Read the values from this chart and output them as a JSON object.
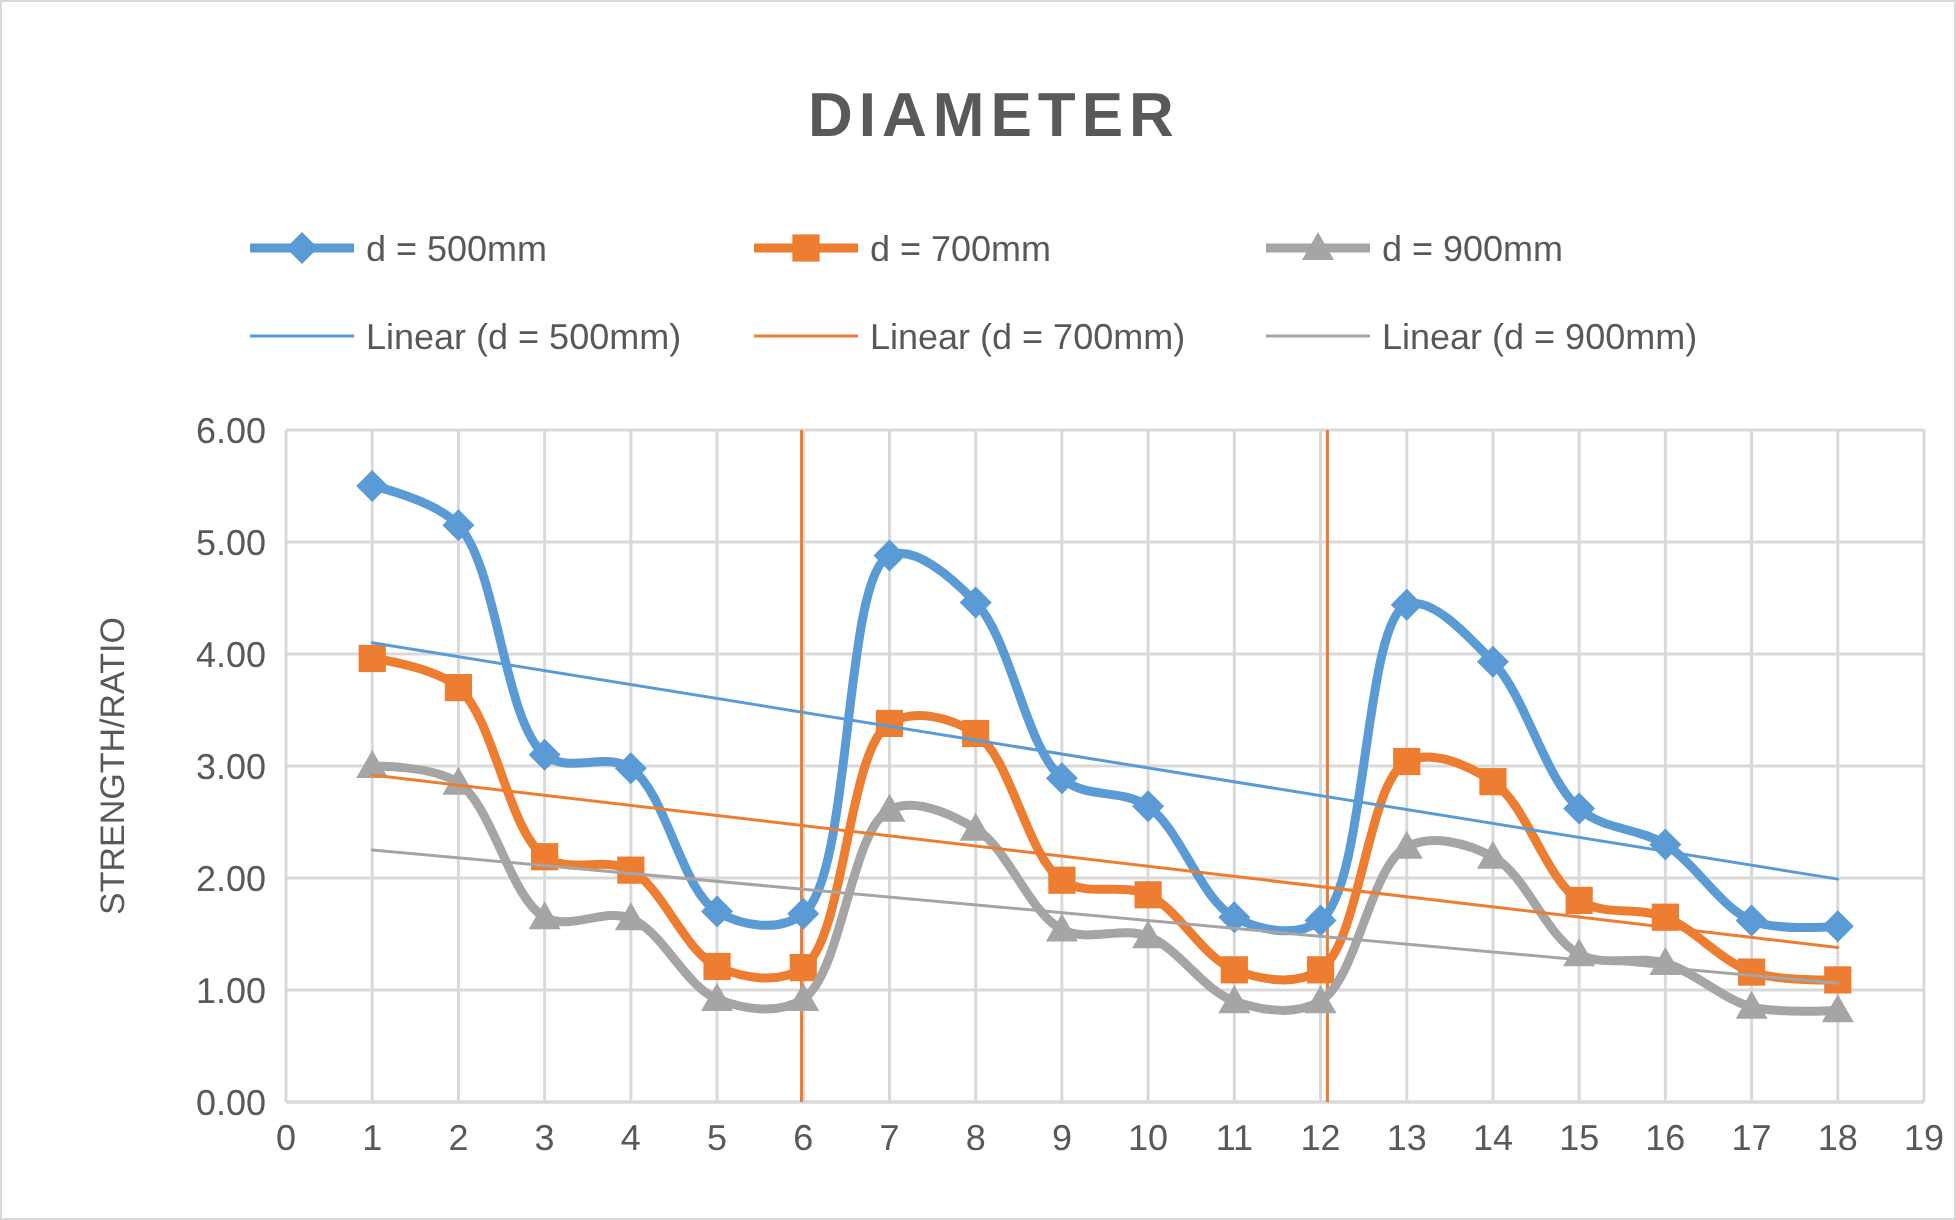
{
  "chart_data": {
    "type": "line",
    "title": "DIAMETER",
    "ylabel": "STRENGTH/RATIO",
    "x": [
      1,
      2,
      3,
      4,
      5,
      6,
      7,
      8,
      9,
      10,
      11,
      12,
      13,
      14,
      15,
      16,
      17,
      18
    ],
    "series": [
      {
        "name": "d = 500mm",
        "color": "#5b9bd5",
        "marker": "diamond",
        "values": [
          5.5,
          5.15,
          3.1,
          2.98,
          1.7,
          1.68,
          4.88,
          4.46,
          2.89,
          2.64,
          1.65,
          1.62,
          4.44,
          3.93,
          2.62,
          2.3,
          1.62,
          1.57
        ]
      },
      {
        "name": "d = 700mm",
        "color": "#ed7d31",
        "marker": "square",
        "values": [
          3.96,
          3.7,
          2.19,
          2.07,
          1.21,
          1.2,
          3.38,
          3.29,
          1.98,
          1.85,
          1.18,
          1.18,
          3.04,
          2.86,
          1.8,
          1.65,
          1.16,
          1.09
        ]
      },
      {
        "name": "d = 900mm",
        "color": "#a5a5a5",
        "marker": "triangle",
        "values": [
          3.0,
          2.85,
          1.65,
          1.64,
          0.92,
          0.92,
          2.61,
          2.44,
          1.54,
          1.48,
          0.9,
          0.9,
          2.28,
          2.19,
          1.32,
          1.24,
          0.85,
          0.82
        ]
      },
      {
        "name": "Linear (d = 500mm)",
        "color": "#5b9bd5",
        "marker": "none",
        "values": [
          4.1,
          null,
          null,
          null,
          null,
          null,
          null,
          null,
          null,
          null,
          null,
          null,
          null,
          null,
          null,
          null,
          null,
          1.99
        ]
      },
      {
        "name": "Linear (d = 700mm)",
        "color": "#ed7d31",
        "marker": "none",
        "values": [
          2.92,
          null,
          null,
          null,
          null,
          null,
          null,
          null,
          null,
          null,
          null,
          null,
          null,
          null,
          null,
          null,
          null,
          1.38
        ]
      },
      {
        "name": "Linear (d = 900mm)",
        "color": "#a5a5a5",
        "marker": "none",
        "values": [
          2.25,
          null,
          null,
          null,
          null,
          null,
          null,
          null,
          null,
          null,
          null,
          null,
          null,
          null,
          null,
          null,
          null,
          1.06
        ]
      }
    ],
    "xlim": [
      0,
      19
    ],
    "xticks": [
      0,
      1,
      2,
      3,
      4,
      5,
      6,
      7,
      8,
      9,
      10,
      11,
      12,
      13,
      14,
      15,
      16,
      17,
      18,
      19
    ],
    "ylim": [
      0,
      6
    ],
    "yticks": [
      {
        "value": 0,
        "label": "0.00"
      },
      {
        "value": 1,
        "label": "1.00"
      },
      {
        "value": 2,
        "label": "2.00"
      },
      {
        "value": 3,
        "label": "3.00"
      },
      {
        "value": 4,
        "label": "4.00"
      },
      {
        "value": 5,
        "label": "5.00"
      },
      {
        "value": 6,
        "label": "6.00"
      }
    ],
    "ref_lines": [
      {
        "axis": "x",
        "value": 5.98,
        "color": "#ed7d31"
      },
      {
        "axis": "x",
        "value": 12.08,
        "color": "#ed7d31"
      }
    ],
    "grid": true,
    "legend": "top"
  }
}
